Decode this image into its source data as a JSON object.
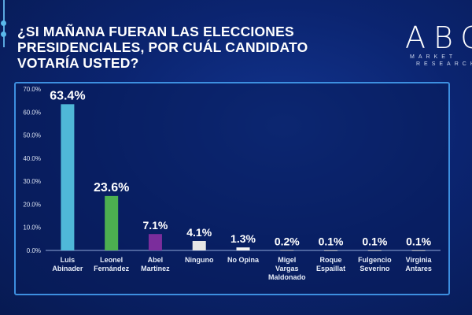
{
  "slide": {
    "title": "¿SI MAÑANA FUERAN LAS ELECCIONES PRESIDENCIALES, POR  CUÁL CANDIDATO VOTARÍA USTED?",
    "logo": {
      "mark": "ABC",
      "line1": "MARKET",
      "line2": "RESEARCH"
    }
  },
  "chart_data": {
    "type": "bar",
    "title": "¿SI MAÑANA FUERAN LAS ELECCIONES PRESIDENCIALES, POR  CUÁL CANDIDATO VOTARÍA USTED?",
    "categories": [
      [
        "Luis",
        "Abinader"
      ],
      [
        "Leonel",
        "Fernández"
      ],
      [
        "Abel",
        "Martinez"
      ],
      [
        "Ninguno"
      ],
      [
        "No Opina"
      ],
      [
        "Migel",
        "Vargas",
        "Maldonado"
      ],
      [
        "Roque",
        "Espaillat"
      ],
      [
        "Fulgencio",
        "Severino"
      ],
      [
        "Virginia",
        "Antares"
      ]
    ],
    "values": [
      63.4,
      23.6,
      7.1,
      4.1,
      1.3,
      0.2,
      0.1,
      0.1,
      0.1
    ],
    "data_labels": [
      "63.4%",
      "23.6%",
      "7.1%",
      "4.1%",
      "1.3%",
      "0.2%",
      "0.1%",
      "0.1%",
      "0.1%"
    ],
    "colors": [
      "#4fb8d8",
      "#4caf50",
      "#7b2d9c",
      "#e6e6e6",
      "#f2f2f2",
      "#d9d9d9",
      "#d9d9d9",
      "#d9d9d9",
      "#d9d9d9"
    ],
    "ylim": [
      0,
      70
    ],
    "yticks": [
      "0.0%",
      "10.0%",
      "20.0%",
      "30.0%",
      "40.0%",
      "50.0%",
      "60.0%",
      "70.0%"
    ],
    "xlabel": "",
    "ylabel": "",
    "grid": false,
    "legend": "none"
  }
}
